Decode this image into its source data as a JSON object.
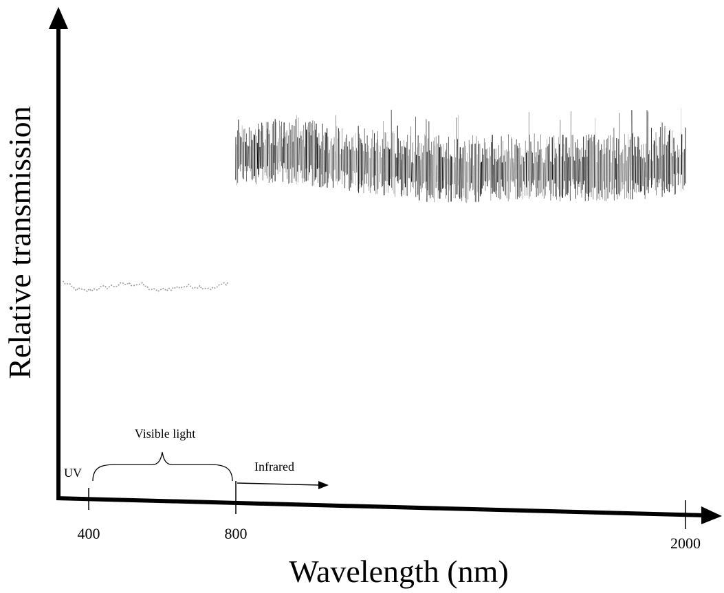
{
  "chart_data": {
    "type": "line",
    "title": "",
    "xlabel": "Wavelength (nm)",
    "ylabel": "Relative transmission",
    "x_ticks": [
      {
        "value": 400,
        "label": "400"
      },
      {
        "value": 800,
        "label": "800"
      },
      {
        "value": 2000,
        "label": "2000"
      }
    ],
    "xlim": [
      320,
      2060
    ],
    "ylim": [
      0,
      1
    ],
    "grid": false,
    "legend": "none",
    "regions": [
      {
        "label": "UV",
        "from": 320,
        "to": 400
      },
      {
        "label": "Visible light",
        "from": 400,
        "to": 800
      },
      {
        "label": "Infrared",
        "from": 800,
        "to": 1050
      }
    ],
    "series": [
      {
        "style": "faint-dotted",
        "color": "#9a9a9a",
        "points": [
          [
            330,
            0.46
          ],
          [
            360,
            0.445
          ],
          [
            390,
            0.44
          ],
          [
            420,
            0.445
          ],
          [
            460,
            0.45
          ],
          [
            500,
            0.455
          ],
          [
            540,
            0.455
          ],
          [
            580,
            0.44
          ],
          [
            620,
            0.445
          ],
          [
            660,
            0.45
          ],
          [
            700,
            0.45
          ],
          [
            740,
            0.445
          ],
          [
            780,
            0.46
          ]
        ]
      },
      {
        "style": "noisy",
        "color": "#000000",
        "noise_amplitude": 0.06,
        "points": [
          [
            800,
            0.72
          ],
          [
            900,
            0.73
          ],
          [
            1000,
            0.72
          ],
          [
            1100,
            0.71
          ],
          [
            1200,
            0.7
          ],
          [
            1300,
            0.69
          ],
          [
            1400,
            0.685
          ],
          [
            1500,
            0.69
          ],
          [
            1600,
            0.69
          ],
          [
            1700,
            0.69
          ],
          [
            1800,
            0.69
          ],
          [
            1900,
            0.695
          ],
          [
            2000,
            0.705
          ]
        ]
      }
    ]
  }
}
